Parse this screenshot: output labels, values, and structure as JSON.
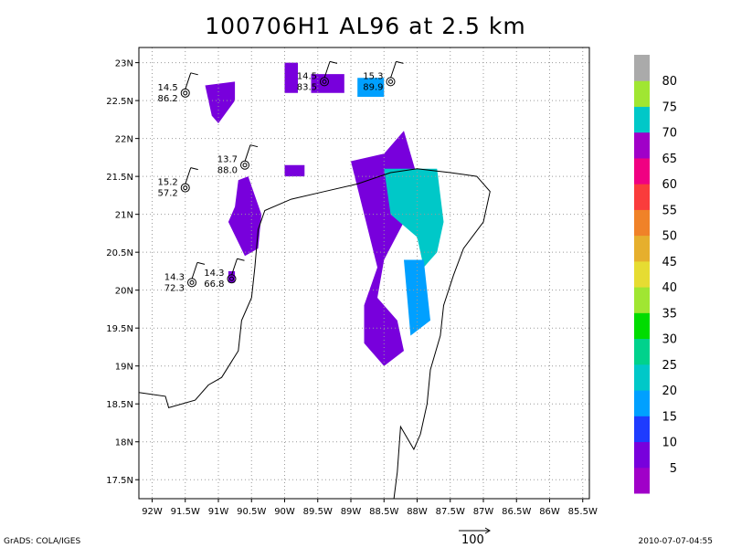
{
  "chart_data": {
    "type": "heatmap",
    "title": "100706H1 AL96 at 2.5 km",
    "x_ticks": [
      "92W",
      "91.5W",
      "91W",
      "90.5W",
      "90W",
      "89.5W",
      "89W",
      "88.5W",
      "88W",
      "87.5W",
      "87W",
      "86.5W",
      "86W",
      "85.5W"
    ],
    "y_ticks": [
      "23N",
      "22.5N",
      "22N",
      "21.5N",
      "21N",
      "20.5N",
      "20N",
      "19.5N",
      "19N",
      "18.5N",
      "18N",
      "17.5N"
    ],
    "xlim": [
      -92.2,
      -85.4
    ],
    "ylim": [
      17.25,
      23.2
    ],
    "grid": true,
    "colorbar": {
      "labels": [
        "5",
        "10",
        "15",
        "20",
        "25",
        "30",
        "35",
        "40",
        "45",
        "50",
        "55",
        "60",
        "65",
        "70",
        "75",
        "80"
      ],
      "colors": [
        "#a000c8",
        "#7800dc",
        "#1e3cff",
        "#00a0ff",
        "#00c8c8",
        "#00d28c",
        "#00dc00",
        "#a0e632",
        "#e6dc32",
        "#e6af2d",
        "#f08228",
        "#fa3c3c",
        "#f00082",
        "#a000c8",
        "#00c8c8",
        "#a0e632",
        "#aaaaaa"
      ]
    },
    "regions": [
      {
        "name": "western-purple-patch",
        "lon": [
          -90.75,
          -90.7,
          -90.55,
          -90.35,
          -90.4,
          -90.6,
          -90.85,
          -90.75
        ],
        "lat": [
          21.1,
          21.45,
          21.5,
          21.0,
          20.55,
          20.45,
          20.9,
          21.1
        ],
        "value": 5
      },
      {
        "name": "northwest-purple-patch",
        "lon": [
          -91.2,
          -90.75,
          -90.75,
          -91.0,
          -91.1,
          -91.2
        ],
        "lat": [
          22.7,
          22.75,
          22.5,
          22.2,
          22.3,
          22.7
        ],
        "value": 5
      },
      {
        "name": "eastern-purple-band",
        "lon": [
          -89.0,
          -88.5,
          -88.2,
          -88.0,
          -88.2,
          -88.5,
          -88.6,
          -88.3,
          -88.2,
          -88.5,
          -88.8,
          -88.8,
          -88.6,
          -89.0
        ],
        "lat": [
          21.7,
          21.8,
          22.1,
          21.5,
          20.9,
          20.4,
          19.9,
          19.6,
          19.2,
          19.0,
          19.3,
          19.8,
          20.3,
          21.7
        ],
        "value": 5
      },
      {
        "name": "eastern-light-blue-core",
        "lon": [
          -88.5,
          -87.7,
          -87.6,
          -87.7,
          -87.9,
          -88.0,
          -88.4,
          -88.5
        ],
        "lat": [
          21.6,
          21.6,
          20.9,
          20.5,
          20.3,
          20.7,
          21.0,
          21.6
        ],
        "value": 20
      },
      {
        "name": "southern-blue-strip",
        "lon": [
          -88.2,
          -87.9,
          -87.8,
          -88.1,
          -88.2
        ],
        "lat": [
          20.4,
          20.4,
          19.6,
          19.4,
          20.4
        ],
        "value": 15
      },
      {
        "name": "north-central-purple-patch",
        "lon": [
          -90.0,
          -89.8,
          -89.8,
          -90.0,
          -90.0
        ],
        "lat": [
          23.0,
          23.0,
          22.6,
          22.6,
          23.0
        ],
        "value": 5
      },
      {
        "name": "northeast-purple-patch",
        "lon": [
          -89.6,
          -89.1,
          -89.1,
          -89.6,
          -89.6
        ],
        "lat": [
          22.85,
          22.85,
          22.6,
          22.6,
          22.85
        ],
        "value": 5
      },
      {
        "name": "northeast-blue-patch",
        "lon": [
          -88.9,
          -88.5,
          -88.5,
          -88.9,
          -88.9
        ],
        "lat": [
          22.8,
          22.8,
          22.55,
          22.55,
          22.8
        ],
        "value": 15
      },
      {
        "name": "central-purple-patch",
        "lon": [
          -90.0,
          -89.7,
          -89.7,
          -90.0,
          -90.0
        ],
        "lat": [
          21.65,
          21.65,
          21.5,
          21.5,
          21.65
        ],
        "value": 5
      },
      {
        "name": "small-southwest-patch",
        "lon": [
          -90.85,
          -90.75,
          -90.75,
          -90.85,
          -90.85
        ],
        "lat": [
          20.25,
          20.25,
          20.1,
          20.1,
          20.25
        ],
        "value": 5
      }
    ],
    "stations": [
      {
        "lon": -91.5,
        "lat": 22.6,
        "top": "14.5",
        "bottom": "86.2"
      },
      {
        "lon": -89.4,
        "lat": 22.75,
        "top": "14.5",
        "bottom": "83.5"
      },
      {
        "lon": -88.4,
        "lat": 22.75,
        "top": "15.3",
        "bottom": "89.9"
      },
      {
        "lon": -90.6,
        "lat": 21.65,
        "top": "13.7",
        "bottom": "88.0"
      },
      {
        "lon": -91.5,
        "lat": 21.35,
        "top": "15.2",
        "bottom": "57.2"
      },
      {
        "lon": -91.4,
        "lat": 20.1,
        "top": "14.3",
        "bottom": "72.3"
      },
      {
        "lon": -90.8,
        "lat": 20.15,
        "top": "14.3",
        "bottom": "66.8"
      }
    ]
  },
  "footer": {
    "credit": "GrADS: COLA/IGES",
    "timestamp": "2010-07-07-04:55",
    "reference_vector_label": "100"
  }
}
